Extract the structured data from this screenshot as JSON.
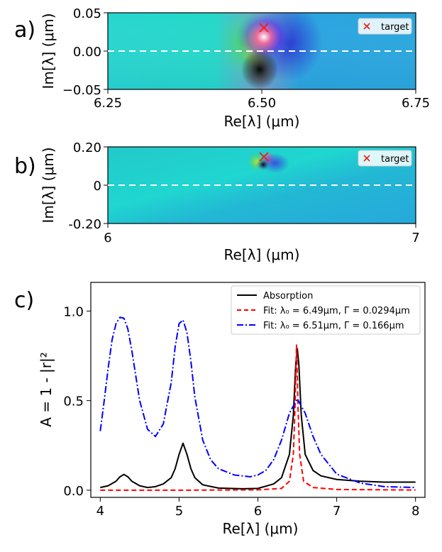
{
  "chart_data": [
    {
      "panel_label": "a)",
      "type": "heatmap",
      "xlabel": "Re[λ] (μm)",
      "ylabel": "Im[λ] (μm)",
      "xlim": [
        6.25,
        6.75
      ],
      "ylim": [
        -0.05,
        0.05
      ],
      "x_ticks": [
        "6.25",
        "6.50",
        "6.75"
      ],
      "y_ticks": [
        "0.05",
        "0.00",
        "−0.05"
      ],
      "singularity": [
        6.5,
        0.03
      ],
      "target": {
        "label": "target",
        "x": 6.5,
        "y": 0.03
      },
      "real_axis_line": 0.0,
      "legend_position": "top-right"
    },
    {
      "panel_label": "b)",
      "type": "heatmap",
      "xlabel": "Re[λ] (μm)",
      "ylabel": "Im[λ] (μm)",
      "xlim": [
        6,
        7
      ],
      "ylim": [
        -0.2,
        0.2
      ],
      "x_ticks": [
        "6",
        "7"
      ],
      "y_ticks": [
        "0.20",
        "0",
        "-0.20"
      ],
      "singularity": [
        6.51,
        0.15
      ],
      "target": {
        "label": "target",
        "x": 6.51,
        "y": 0.15
      },
      "real_axis_line": 0.0,
      "legend_position": "top-right"
    },
    {
      "panel_label": "c)",
      "type": "line",
      "xlabel": "Re[λ] (μm)",
      "ylabel": "A = 1 - |r|²",
      "xlim": [
        3.88,
        8.12
      ],
      "ylim": [
        -0.04,
        1.16
      ],
      "x_ticks": [
        "4",
        "5",
        "6",
        "7",
        "8"
      ],
      "y_ticks": [
        "0.0",
        "0.5",
        "1.0"
      ],
      "legend_position": "top-right",
      "series": [
        {
          "name": "Absorption",
          "color": "#000000",
          "style": "solid",
          "x": [
            4.0,
            4.1,
            4.2,
            4.25,
            4.3,
            4.35,
            4.4,
            4.5,
            4.6,
            4.7,
            4.8,
            4.9,
            4.95,
            5.0,
            5.05,
            5.1,
            5.15,
            5.2,
            5.3,
            5.5,
            5.8,
            6.0,
            6.2,
            6.3,
            6.4,
            6.45,
            6.48,
            6.5,
            6.52,
            6.55,
            6.6,
            6.7,
            6.8,
            7.0,
            7.3,
            7.6,
            8.0
          ],
          "y": [
            0.015,
            0.025,
            0.05,
            0.075,
            0.088,
            0.075,
            0.05,
            0.025,
            0.015,
            0.02,
            0.035,
            0.07,
            0.12,
            0.2,
            0.262,
            0.2,
            0.12,
            0.07,
            0.03,
            0.012,
            0.008,
            0.01,
            0.035,
            0.07,
            0.2,
            0.42,
            0.7,
            0.79,
            0.7,
            0.42,
            0.2,
            0.11,
            0.08,
            0.06,
            0.05,
            0.045,
            0.045
          ]
        },
        {
          "name": "Fit: λ₀ = 6.49μm, Γ = 0.0294μm",
          "color": "#ff0000",
          "style": "dashed",
          "x": [
            4.0,
            5.0,
            6.0,
            6.3,
            6.4,
            6.45,
            6.47,
            6.49,
            6.51,
            6.53,
            6.58,
            6.7,
            7.0,
            8.0
          ],
          "y": [
            0.0,
            0.0,
            0.002,
            0.01,
            0.05,
            0.2,
            0.45,
            0.81,
            0.45,
            0.2,
            0.05,
            0.015,
            0.004,
            0.001
          ]
        },
        {
          "name": "Fit: λ₀ = 6.51μm, Γ = 0.166μm",
          "color": "#0000ff",
          "style": "dashdot",
          "x": [
            4.0,
            4.05,
            4.1,
            4.15,
            4.2,
            4.25,
            4.3,
            4.35,
            4.4,
            4.5,
            4.6,
            4.7,
            4.8,
            4.9,
            4.95,
            5.0,
            5.05,
            5.1,
            5.15,
            5.2,
            5.3,
            5.4,
            5.5,
            5.7,
            5.9,
            6.0,
            6.1,
            6.2,
            6.3,
            6.4,
            6.5,
            6.6,
            6.7,
            6.8,
            7.0,
            7.3,
            7.6,
            8.0
          ],
          "y": [
            0.33,
            0.5,
            0.68,
            0.84,
            0.93,
            0.965,
            0.96,
            0.9,
            0.78,
            0.5,
            0.34,
            0.3,
            0.37,
            0.6,
            0.8,
            0.93,
            0.95,
            0.88,
            0.72,
            0.52,
            0.28,
            0.17,
            0.12,
            0.085,
            0.075,
            0.085,
            0.11,
            0.17,
            0.28,
            0.43,
            0.51,
            0.43,
            0.3,
            0.2,
            0.09,
            0.04,
            0.02,
            0.015
          ]
        }
      ]
    }
  ]
}
